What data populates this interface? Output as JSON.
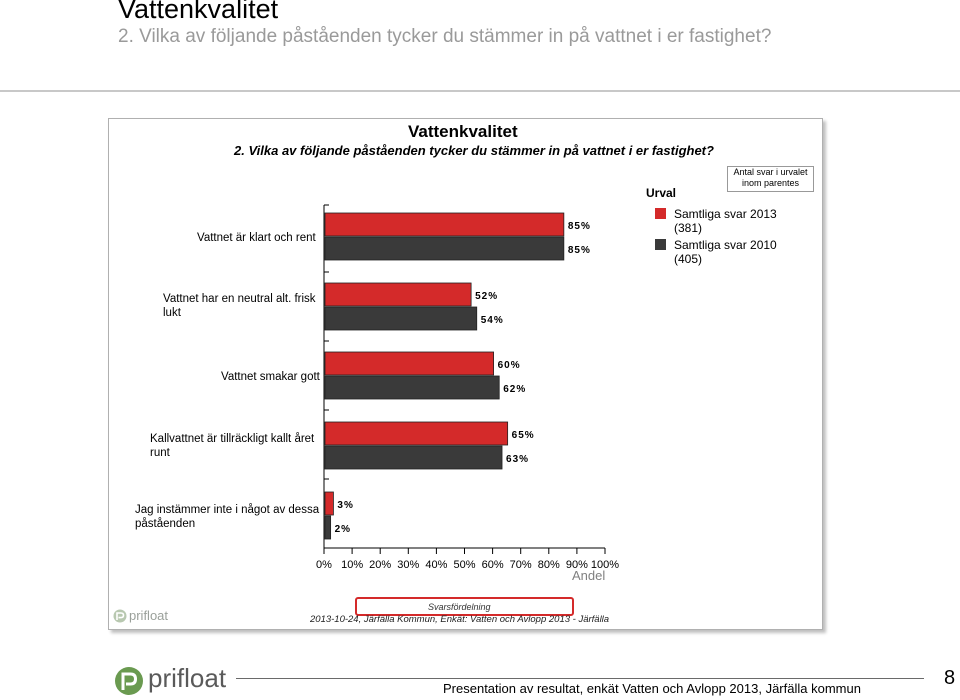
{
  "slide": {
    "title": "Vattenkvalitet",
    "subtitle": "2. Vilka av följande påståenden tycker du stämmer in på vattnet i er fastighet?"
  },
  "chart_data": {
    "type": "bar",
    "orientation": "horizontal",
    "title": "Vattenkvalitet",
    "subtitle": "2. Vilka av följande påståenden tycker du stämmer in på vattnet i er fastighet?",
    "categories": [
      "Vattnet är klart och rent",
      "Vattnet har en neutral alt. frisk lukt",
      "Vattnet smakar gott",
      "Kallvattnet är tillräckligt kallt året runt",
      "Jag instämmer inte i något av dessa påståenden"
    ],
    "series": [
      {
        "name": "Samtliga svar 2013",
        "count": "(381)",
        "color": "#d42a2a",
        "values": [
          85,
          52,
          60,
          65,
          3
        ],
        "labels": [
          "85%",
          "52%",
          "60%",
          "65%",
          "3%"
        ]
      },
      {
        "name": "Samtliga svar 2010",
        "count": "(405)",
        "color": "#3a3a3a",
        "values": [
          85,
          54,
          62,
          63,
          2
        ],
        "labels": [
          "85%",
          "54%",
          "62%",
          "63%",
          "2%"
        ]
      }
    ],
    "xlim": [
      0,
      100
    ],
    "xticks": [
      "0%",
      "10%",
      "20%",
      "30%",
      "40%",
      "50%",
      "60%",
      "70%",
      "80%",
      "90%",
      "100%"
    ],
    "xlabel": "Andel",
    "legend_title": "Urval",
    "legend_note": "Antal svar i urvalet inom parentes",
    "grid": false,
    "legend_position": "top-right"
  },
  "chart_footer": {
    "svar_label": "Svarsfördelning",
    "source": "2013-10-24, Järfälla Kommun, Enkät: Vatten och Avlopp 2013 - Järfälla",
    "logo": "prifloat"
  },
  "footer": {
    "logo": "prifloat",
    "text": "Presentation av resultat, enkät Vatten och Avlopp 2013, Järfälla kommun",
    "page": "8"
  },
  "colors": {
    "accent_red": "#d42a2a",
    "dark_grey": "#3a3a3a",
    "logo_green": "#6a9a50"
  }
}
